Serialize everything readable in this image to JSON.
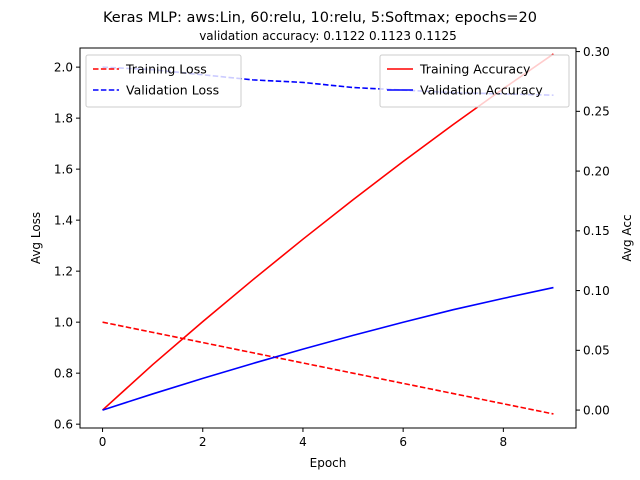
{
  "chart_data": {
    "type": "line",
    "title": "Keras MLP: aws:Lin, 60:relu, 10:relu, 5:Softmax; epochs=20",
    "subtitle": "validation accuracy:  0.1122  0.1123  0.1125",
    "xlabel": "Epoch",
    "ylabel_left": "Avg Loss",
    "ylabel_right": "Avg Acc",
    "x": [
      0,
      1,
      2,
      3,
      4,
      5,
      6,
      7,
      8,
      9
    ],
    "xlim": [
      -0.45,
      9.45
    ],
    "ylim_left": [
      0.585,
      2.075
    ],
    "ylim_right": [
      -0.015,
      0.303
    ],
    "xticks": [
      0,
      2,
      4,
      6,
      8
    ],
    "yticks_left": [
      0.6,
      0.8,
      1.0,
      1.2,
      1.4,
      1.6,
      1.8,
      2.0
    ],
    "yticks_right": [
      0.0,
      0.05,
      0.1,
      0.15,
      0.2,
      0.25,
      0.3
    ],
    "left_series": [
      {
        "name": "Training Loss",
        "color": "#ff0000",
        "dash": true,
        "values": [
          1.0,
          0.96,
          0.92,
          0.88,
          0.84,
          0.8,
          0.76,
          0.72,
          0.68,
          0.64
        ]
      },
      {
        "name": "Validation Loss",
        "color": "#0000ff",
        "dash": true,
        "values": [
          2.0,
          1.99,
          1.97,
          1.95,
          1.94,
          1.92,
          1.91,
          1.9,
          1.895,
          1.89
        ]
      }
    ],
    "right_series": [
      {
        "name": "Training Accuracy",
        "color": "#ff0000",
        "dash": false,
        "values": [
          0.0,
          0.038,
          0.074,
          0.109,
          0.143,
          0.176,
          0.208,
          0.239,
          0.269,
          0.298
        ]
      },
      {
        "name": "Validation Accuracy",
        "color": "#0000ff",
        "dash": false,
        "values": [
          0.0,
          0.0135,
          0.0265,
          0.039,
          0.051,
          0.0625,
          0.0735,
          0.084,
          0.0935,
          0.1025
        ]
      }
    ],
    "legend_left_placement": "upper-left",
    "legend_right_placement": "upper-right",
    "grid": false
  }
}
